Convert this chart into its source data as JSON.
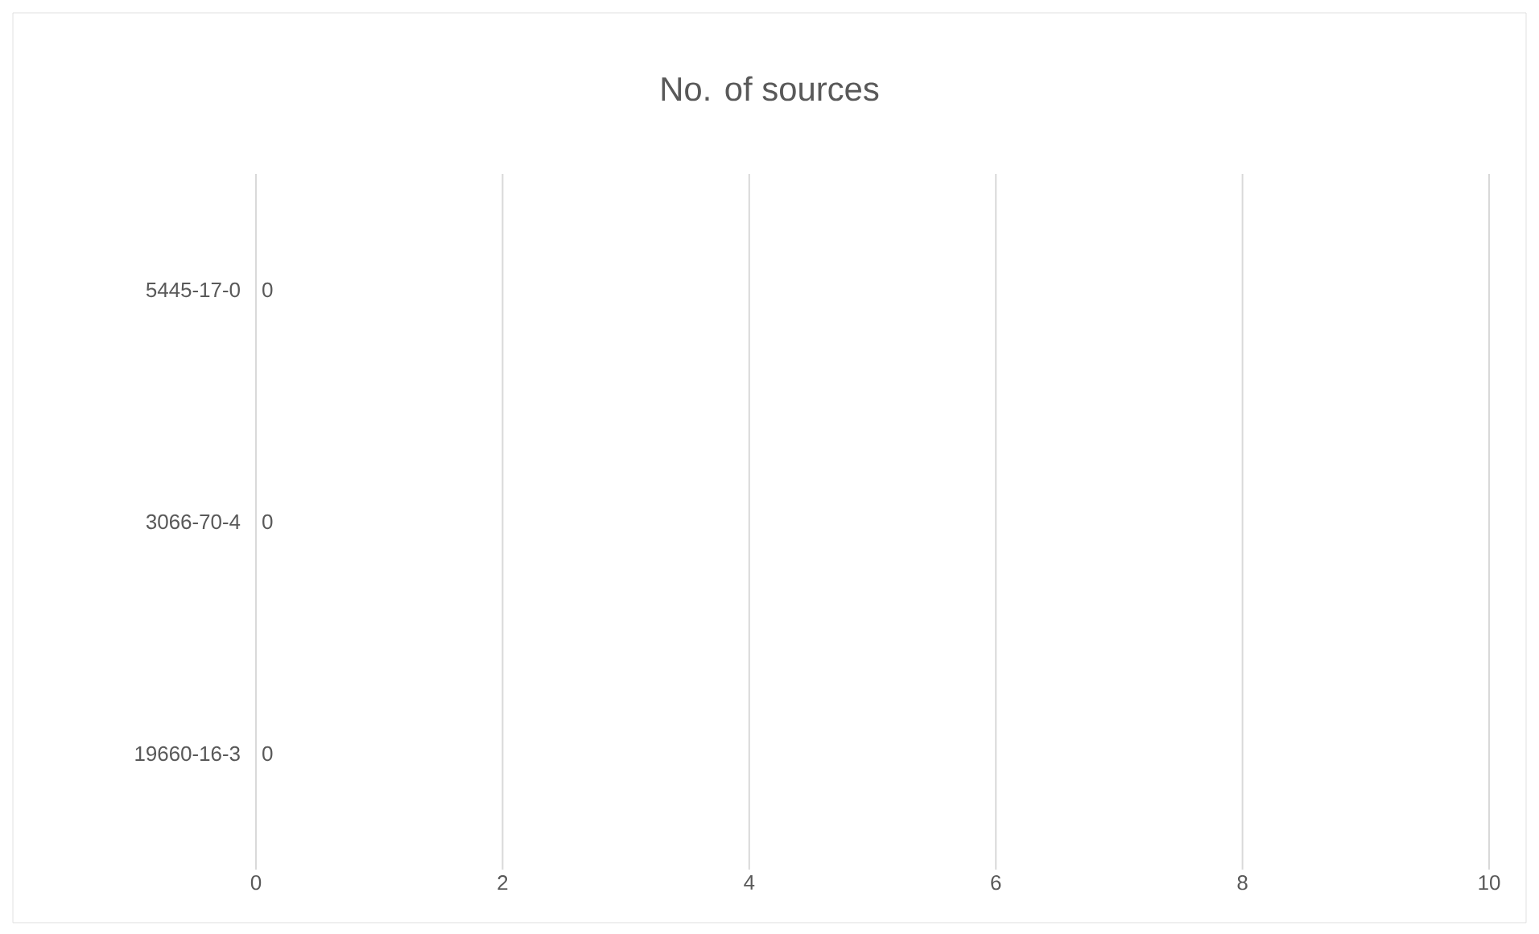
{
  "chart_data": {
    "type": "bar",
    "orientation": "horizontal",
    "title": "No. of sources",
    "categories": [
      "5445-17-0",
      "3066-70-4",
      "19660-16-3"
    ],
    "values": [
      0,
      0,
      0
    ],
    "xlim": [
      0,
      10
    ],
    "xticks": [
      0,
      2,
      4,
      6,
      8,
      10
    ],
    "grid": "x",
    "data_labels": true
  }
}
